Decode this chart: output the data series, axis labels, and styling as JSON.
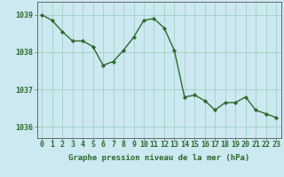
{
  "x": [
    0,
    1,
    2,
    3,
    4,
    5,
    6,
    7,
    8,
    9,
    10,
    11,
    12,
    13,
    14,
    15,
    16,
    17,
    18,
    19,
    20,
    21,
    22,
    23
  ],
  "y": [
    1039.0,
    1038.85,
    1038.55,
    1038.3,
    1038.3,
    1038.15,
    1037.65,
    1037.75,
    1038.05,
    1038.4,
    1038.85,
    1038.9,
    1038.65,
    1038.05,
    1036.8,
    1036.85,
    1036.7,
    1036.45,
    1036.65,
    1036.65,
    1036.8,
    1036.45,
    1036.35,
    1036.25
  ],
  "line_color": "#2d6a2d",
  "marker": "D",
  "marker_size": 2.2,
  "linewidth": 1.0,
  "background_color": "#cce8f0",
  "grid_color": "#99ccbb",
  "ylabel_ticks": [
    1036,
    1037,
    1038,
    1039
  ],
  "xlabel_label": "Graphe pression niveau de la mer (hPa)",
  "xlim": [
    -0.5,
    23.5
  ],
  "ylim": [
    1035.7,
    1039.35
  ],
  "xlabel_fontsize": 6.5,
  "tick_fontsize": 6.0,
  "spine_color": "#666666"
}
